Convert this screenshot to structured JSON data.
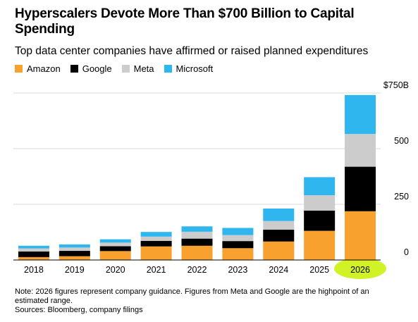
{
  "chart_data": {
    "type": "stacked-bar",
    "title": "Hyperscalers Devote More Than $700 Billion to Capital Spending",
    "subtitle": "Top data center companies have affirmed or raised planned expenditures",
    "categories": [
      "2018",
      "2019",
      "2020",
      "2021",
      "2022",
      "2023",
      "2024",
      "2025",
      "2026"
    ],
    "series": [
      {
        "name": "Amazon",
        "color": "#f9a12e",
        "values": [
          13,
          17,
          40,
          61,
          64,
          53,
          83,
          131,
          219
        ]
      },
      {
        "name": "Google",
        "color": "#000000",
        "values": [
          25,
          24,
          22,
          25,
          32,
          32,
          53,
          91,
          200
        ]
      },
      {
        "name": "Meta",
        "color": "#cccccc",
        "values": [
          14,
          15,
          16,
          19,
          31,
          27,
          39,
          69,
          147
        ]
      },
      {
        "name": "Microsoft",
        "color": "#2fb6ef",
        "values": [
          12,
          14,
          15,
          21,
          24,
          32,
          56,
          81,
          175
        ]
      }
    ],
    "ylim": [
      0,
      750
    ],
    "yticks": [
      0,
      250,
      500,
      {
        "value": 750,
        "label": "$750B"
      }
    ],
    "grid": true,
    "note": "Note: 2026 figures represent company guidance. Figures from Meta and Google are the highpoint of an estimated range.",
    "source": "Sources: Bloomberg, company filings"
  }
}
